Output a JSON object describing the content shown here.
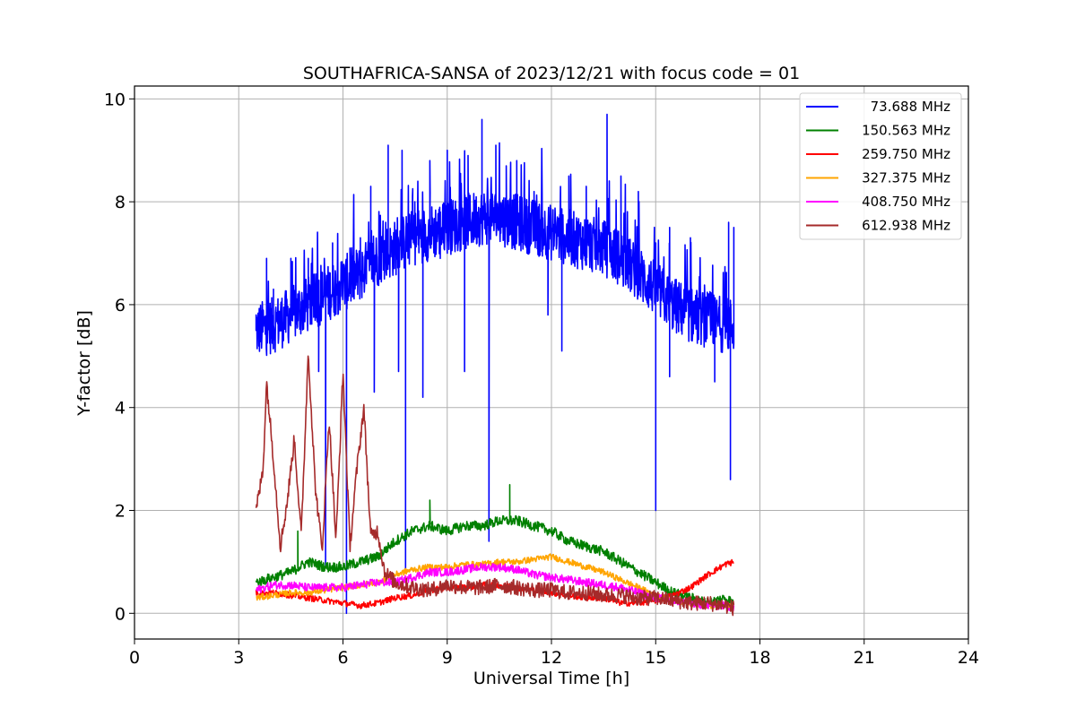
{
  "chart_data": {
    "type": "line",
    "title": "SOUTHAFRICA-SANSA of 2023/12/21 with focus code = 01",
    "xlabel": "Universal Time [h]",
    "ylabel": "Y-factor [dB]",
    "xlim": [
      0,
      24
    ],
    "ylim": [
      -0.5,
      10.25
    ],
    "xticks": [
      0,
      3,
      6,
      9,
      12,
      15,
      18,
      21,
      24
    ],
    "yticks": [
      0,
      2,
      4,
      6,
      8,
      10
    ],
    "grid": true,
    "legend_position": "top-right",
    "series": [
      {
        "name": "73.688 MHz",
        "color": "#0000ff",
        "x": [
          3.5,
          4.0,
          4.5,
          5.0,
          5.5,
          6.0,
          6.5,
          7.0,
          7.5,
          8.0,
          8.5,
          9.0,
          9.5,
          10.0,
          10.5,
          11.0,
          11.5,
          12.0,
          12.5,
          13.0,
          13.5,
          14.0,
          14.5,
          15.0,
          15.5,
          16.0,
          16.5,
          17.0,
          17.25
        ],
        "y": [
          5.5,
          5.6,
          5.8,
          6.0,
          6.2,
          6.4,
          6.6,
          6.9,
          7.1,
          7.3,
          7.4,
          7.5,
          7.6,
          7.7,
          7.7,
          7.6,
          7.5,
          7.4,
          7.3,
          7.2,
          7.1,
          6.9,
          6.6,
          6.3,
          6.0,
          5.8,
          5.7,
          5.6,
          5.6
        ],
        "spike_range": [
          [
            3.5,
            5.8
          ],
          [
            3.8,
            6.9
          ],
          [
            4.0,
            6.3
          ],
          [
            4.5,
            6.9
          ],
          [
            5.0,
            6.9
          ],
          [
            5.3,
            4.7
          ],
          [
            5.5,
            0.9
          ],
          [
            5.7,
            7.2
          ],
          [
            6.1,
            0.0
          ],
          [
            6.2,
            7.1
          ],
          [
            6.5,
            7.3
          ],
          [
            6.8,
            8.3
          ],
          [
            6.9,
            4.3
          ],
          [
            7.3,
            9.1
          ],
          [
            7.6,
            4.7
          ],
          [
            7.7,
            9.0
          ],
          [
            7.8,
            0.8
          ],
          [
            8.0,
            8.1
          ],
          [
            8.3,
            4.2
          ],
          [
            8.5,
            8.8
          ],
          [
            8.8,
            6.9
          ],
          [
            9.0,
            9.0
          ],
          [
            9.5,
            4.7
          ],
          [
            9.6,
            8.9
          ],
          [
            10.0,
            9.6
          ],
          [
            10.2,
            1.4
          ],
          [
            10.4,
            9.1
          ],
          [
            10.7,
            8.7
          ],
          [
            11.0,
            8.8
          ],
          [
            11.5,
            8.2
          ],
          [
            11.9,
            5.8
          ],
          [
            12.3,
            5.1
          ],
          [
            12.5,
            8.5
          ],
          [
            12.9,
            6.9
          ],
          [
            13.0,
            8.3
          ],
          [
            13.6,
            9.7
          ],
          [
            14.0,
            8.5
          ],
          [
            14.5,
            8.2
          ],
          [
            15.0,
            7.2
          ],
          [
            15.0,
            2.0
          ],
          [
            15.4,
            7.5
          ],
          [
            15.4,
            4.6
          ],
          [
            16.0,
            7.3
          ],
          [
            16.7,
            4.5
          ],
          [
            17.1,
            7.6
          ],
          [
            17.15,
            2.6
          ],
          [
            17.25,
            7.5
          ]
        ]
      },
      {
        "name": "150.563 MHz",
        "color": "#008000",
        "x": [
          3.5,
          4.0,
          4.5,
          5.0,
          5.5,
          6.0,
          6.5,
          7.0,
          7.5,
          8.0,
          8.5,
          9.0,
          9.5,
          10.0,
          10.5,
          11.0,
          11.5,
          12.0,
          12.5,
          13.0,
          13.5,
          14.0,
          14.5,
          15.0,
          15.5,
          16.0,
          16.5,
          17.0,
          17.25
        ],
        "y": [
          0.6,
          0.7,
          0.8,
          1.0,
          0.9,
          0.9,
          1.0,
          1.1,
          1.4,
          1.6,
          1.7,
          1.6,
          1.7,
          1.7,
          1.8,
          1.8,
          1.7,
          1.6,
          1.4,
          1.3,
          1.2,
          1.0,
          0.8,
          0.6,
          0.4,
          0.3,
          0.2,
          0.3,
          0.2
        ],
        "spike_range": [
          [
            4.7,
            1.6
          ],
          [
            8.5,
            2.2
          ],
          [
            10.8,
            2.5
          ]
        ]
      },
      {
        "name": "259.750 MHz",
        "color": "#ff0000",
        "x": [
          3.5,
          4.0,
          4.5,
          5.0,
          5.5,
          6.0,
          6.5,
          7.0,
          7.5,
          8.0,
          8.5,
          9.0,
          9.5,
          10.0,
          10.5,
          11.0,
          11.5,
          12.0,
          12.5,
          13.0,
          13.5,
          14.0,
          14.5,
          15.0,
          15.5,
          16.0,
          16.5,
          17.0,
          17.25
        ],
        "y": [
          0.4,
          0.4,
          0.35,
          0.3,
          0.25,
          0.2,
          0.15,
          0.2,
          0.3,
          0.35,
          0.45,
          0.5,
          0.5,
          0.55,
          0.55,
          0.5,
          0.45,
          0.4,
          0.35,
          0.3,
          0.3,
          0.2,
          0.2,
          0.25,
          0.35,
          0.5,
          0.75,
          0.95,
          1.0
        ]
      },
      {
        "name": "327.375 MHz",
        "color": "#ffa500",
        "x": [
          3.5,
          4.0,
          4.5,
          5.0,
          5.5,
          6.0,
          6.5,
          7.0,
          7.5,
          8.0,
          8.5,
          9.0,
          9.5,
          10.0,
          10.5,
          11.0,
          11.5,
          12.0,
          12.5,
          13.0,
          13.5,
          14.0,
          14.5,
          15.0,
          15.5,
          16.0,
          16.5,
          17.0,
          17.25
        ],
        "y": [
          0.3,
          0.35,
          0.4,
          0.4,
          0.45,
          0.5,
          0.55,
          0.6,
          0.75,
          0.85,
          0.9,
          0.9,
          0.95,
          0.95,
          1.0,
          1.0,
          1.05,
          1.1,
          1.0,
          0.9,
          0.8,
          0.65,
          0.5,
          0.35,
          0.25,
          0.2,
          0.15,
          0.15,
          0.1
        ]
      },
      {
        "name": "408.750 MHz",
        "color": "#ff00ff",
        "x": [
          3.5,
          4.0,
          4.5,
          5.0,
          5.5,
          6.0,
          6.5,
          7.0,
          7.5,
          8.0,
          8.5,
          9.0,
          9.5,
          10.0,
          10.5,
          11.0,
          11.5,
          12.0,
          12.5,
          13.0,
          13.5,
          14.0,
          14.5,
          15.0,
          15.5,
          16.0,
          16.5,
          17.0,
          17.25
        ],
        "y": [
          0.45,
          0.55,
          0.55,
          0.5,
          0.5,
          0.5,
          0.55,
          0.6,
          0.6,
          0.7,
          0.8,
          0.8,
          0.85,
          0.9,
          0.9,
          0.85,
          0.75,
          0.7,
          0.65,
          0.6,
          0.55,
          0.5,
          0.4,
          0.3,
          0.25,
          0.2,
          0.15,
          0.15,
          0.1
        ]
      },
      {
        "name": "612.938 MHz",
        "color": "#a52a2a",
        "x": [
          3.5,
          3.7,
          3.8,
          4.0,
          4.2,
          4.4,
          4.6,
          4.8,
          5.0,
          5.2,
          5.4,
          5.6,
          5.8,
          6.0,
          6.2,
          6.4,
          6.6,
          6.8,
          7.0,
          7.2,
          7.5,
          8.0,
          8.5,
          9.0,
          9.5,
          10.0,
          10.5,
          11.0,
          11.5,
          12.0,
          12.5,
          13.0,
          13.5,
          14.0,
          14.5,
          15.0,
          15.5,
          16.0,
          16.5,
          17.0,
          17.25
        ],
        "y": [
          2.0,
          2.8,
          4.5,
          3.0,
          1.3,
          2.2,
          3.4,
          1.5,
          5.1,
          2.5,
          1.2,
          3.8,
          1.4,
          4.7,
          1.3,
          2.8,
          4.0,
          1.5,
          1.6,
          0.8,
          0.6,
          0.5,
          0.45,
          0.55,
          0.5,
          0.5,
          0.55,
          0.5,
          0.45,
          0.45,
          0.4,
          0.4,
          0.35,
          0.35,
          0.3,
          0.3,
          0.25,
          0.2,
          0.2,
          0.15,
          0.1
        ]
      }
    ]
  }
}
